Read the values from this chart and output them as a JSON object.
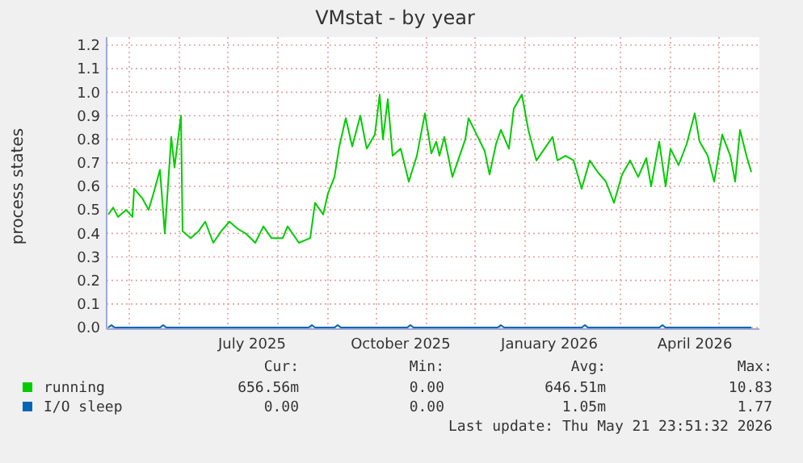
{
  "chart_data": {
    "type": "line",
    "title": "VMstat - by year",
    "ylabel": "process states",
    "xlim": [
      "2025-04-17",
      "2026-05-26"
    ],
    "ylim": [
      0,
      1.2
    ],
    "xticks": [
      {
        "value": "2025-05-01",
        "label": null
      },
      {
        "value": "2025-06-01",
        "label": null
      },
      {
        "value": "2025-07-01",
        "label": null
      },
      {
        "value": "2025-07-16",
        "label": "July 2025"
      },
      {
        "value": "2025-08-01",
        "label": null
      },
      {
        "value": "2025-09-01",
        "label": null
      },
      {
        "value": "2025-10-01",
        "label": null
      },
      {
        "value": "2025-10-16",
        "label": "October 2025"
      },
      {
        "value": "2025-11-01",
        "label": null
      },
      {
        "value": "2025-12-01",
        "label": null
      },
      {
        "value": "2026-01-01",
        "label": null
      },
      {
        "value": "2026-01-16",
        "label": "January 2026"
      },
      {
        "value": "2026-02-01",
        "label": null
      },
      {
        "value": "2026-03-01",
        "label": null
      },
      {
        "value": "2026-04-01",
        "label": null
      },
      {
        "value": "2026-04-16",
        "label": "April 2026"
      },
      {
        "value": "2026-05-01",
        "label": null
      }
    ],
    "yticks": [
      {
        "value": 0,
        "label": "0.0"
      },
      0.1,
      0.2,
      0.3,
      0.4,
      0.5,
      0.6,
      0.7,
      0.8,
      0.9,
      {
        "value": 1,
        "label": "1.0"
      },
      1.1,
      1.2
    ],
    "grid": true,
    "legend": "bottom",
    "series": [
      {
        "name": "running",
        "color": "#00cc00",
        "x": [
          "2025-04-18",
          "2025-04-21",
          "2025-04-24",
          "2025-04-29",
          "2025-05-03",
          "2025-05-04",
          "2025-05-09",
          "2025-05-13",
          "2025-05-16",
          "2025-05-20",
          "2025-05-23",
          "2025-05-27",
          "2025-05-29",
          "2025-06-02",
          "2025-06-03",
          "2025-06-08",
          "2025-06-13",
          "2025-06-17",
          "2025-06-22",
          "2025-06-27",
          "2025-07-02",
          "2025-07-07",
          "2025-07-12",
          "2025-07-18",
          "2025-07-23",
          "2025-07-28",
          "2025-08-04",
          "2025-08-07",
          "2025-08-14",
          "2025-08-21",
          "2025-08-24",
          "2025-08-29",
          "2025-09-01",
          "2025-09-05",
          "2025-09-08",
          "2025-09-12",
          "2025-09-16",
          "2025-09-21",
          "2025-09-25",
          "2025-09-30",
          "2025-10-03",
          "2025-10-05",
          "2025-10-08",
          "2025-10-11",
          "2025-10-16",
          "2025-10-21",
          "2025-10-26",
          "2025-10-31",
          "2025-11-04",
          "2025-11-07",
          "2025-11-09",
          "2025-11-12",
          "2025-11-17",
          "2025-11-22",
          "2025-11-25",
          "2025-11-27",
          "2025-12-02",
          "2025-12-07",
          "2025-12-10",
          "2025-12-14",
          "2025-12-17",
          "2025-12-22",
          "2025-12-25",
          "2025-12-30",
          "2026-01-03",
          "2026-01-08",
          "2026-01-13",
          "2026-01-18",
          "2026-01-21",
          "2026-01-26",
          "2026-01-31",
          "2026-02-05",
          "2026-02-10",
          "2026-02-15",
          "2026-02-20",
          "2026-02-25",
          "2026-03-02",
          "2026-03-07",
          "2026-03-12",
          "2026-03-17",
          "2026-03-20",
          "2026-03-25",
          "2026-03-29",
          "2026-04-01",
          "2026-04-06",
          "2026-04-11",
          "2026-04-16",
          "2026-04-19",
          "2026-04-24",
          "2026-04-28",
          "2026-05-03",
          "2026-05-08",
          "2026-05-11",
          "2026-05-14",
          "2026-05-18",
          "2026-05-21"
        ],
        "values": [
          0.48,
          0.51,
          0.47,
          0.5,
          0.47,
          0.59,
          0.55,
          0.5,
          0.57,
          0.67,
          0.4,
          0.81,
          0.68,
          0.9,
          0.41,
          0.38,
          0.41,
          0.45,
          0.36,
          0.41,
          0.45,
          0.42,
          0.4,
          0.36,
          0.43,
          0.38,
          0.38,
          0.43,
          0.36,
          0.38,
          0.53,
          0.48,
          0.57,
          0.64,
          0.77,
          0.89,
          0.77,
          0.9,
          0.76,
          0.82,
          0.99,
          0.8,
          0.97,
          0.73,
          0.76,
          0.62,
          0.73,
          0.91,
          0.74,
          0.79,
          0.73,
          0.81,
          0.64,
          0.74,
          0.8,
          0.89,
          0.82,
          0.75,
          0.65,
          0.78,
          0.84,
          0.76,
          0.93,
          0.99,
          0.84,
          0.71,
          0.76,
          0.81,
          0.71,
          0.73,
          0.71,
          0.59,
          0.71,
          0.66,
          0.62,
          0.53,
          0.65,
          0.71,
          0.64,
          0.72,
          0.6,
          0.79,
          0.6,
          0.76,
          0.69,
          0.78,
          0.91,
          0.79,
          0.73,
          0.62,
          0.82,
          0.73,
          0.62,
          0.84,
          0.73,
          0.66
        ]
      },
      {
        "name": "I/O sleep",
        "color": "#0066b3",
        "x": [
          "2025-04-18",
          "2025-04-20",
          "2025-04-22",
          "2025-05-20",
          "2025-05-22",
          "2025-05-24",
          "2025-08-20",
          "2025-08-22",
          "2025-08-24",
          "2025-09-05",
          "2025-09-07",
          "2025-09-09",
          "2025-10-20",
          "2025-10-22",
          "2025-10-24",
          "2025-12-15",
          "2025-12-17",
          "2025-12-19",
          "2026-02-05",
          "2026-02-07",
          "2026-02-09",
          "2026-03-25",
          "2026-03-27",
          "2026-03-29",
          "2026-05-21"
        ],
        "values": [
          0,
          0.01,
          0,
          0,
          0.01,
          0,
          0,
          0.01,
          0,
          0,
          0.01,
          0,
          0,
          0.01,
          0,
          0,
          0.01,
          0,
          0,
          0.01,
          0,
          0,
          0.01,
          0,
          0
        ]
      }
    ],
    "annotations": [
      "Cur:",
      "Min:",
      "Avg:",
      "Max:",
      "656.56m",
      "0.00",
      "646.51m",
      "10.83",
      "0.00",
      "0.00",
      "1.05m",
      "1.77",
      "Last update: Thu May 21 23:51:32 2026"
    ]
  }
}
